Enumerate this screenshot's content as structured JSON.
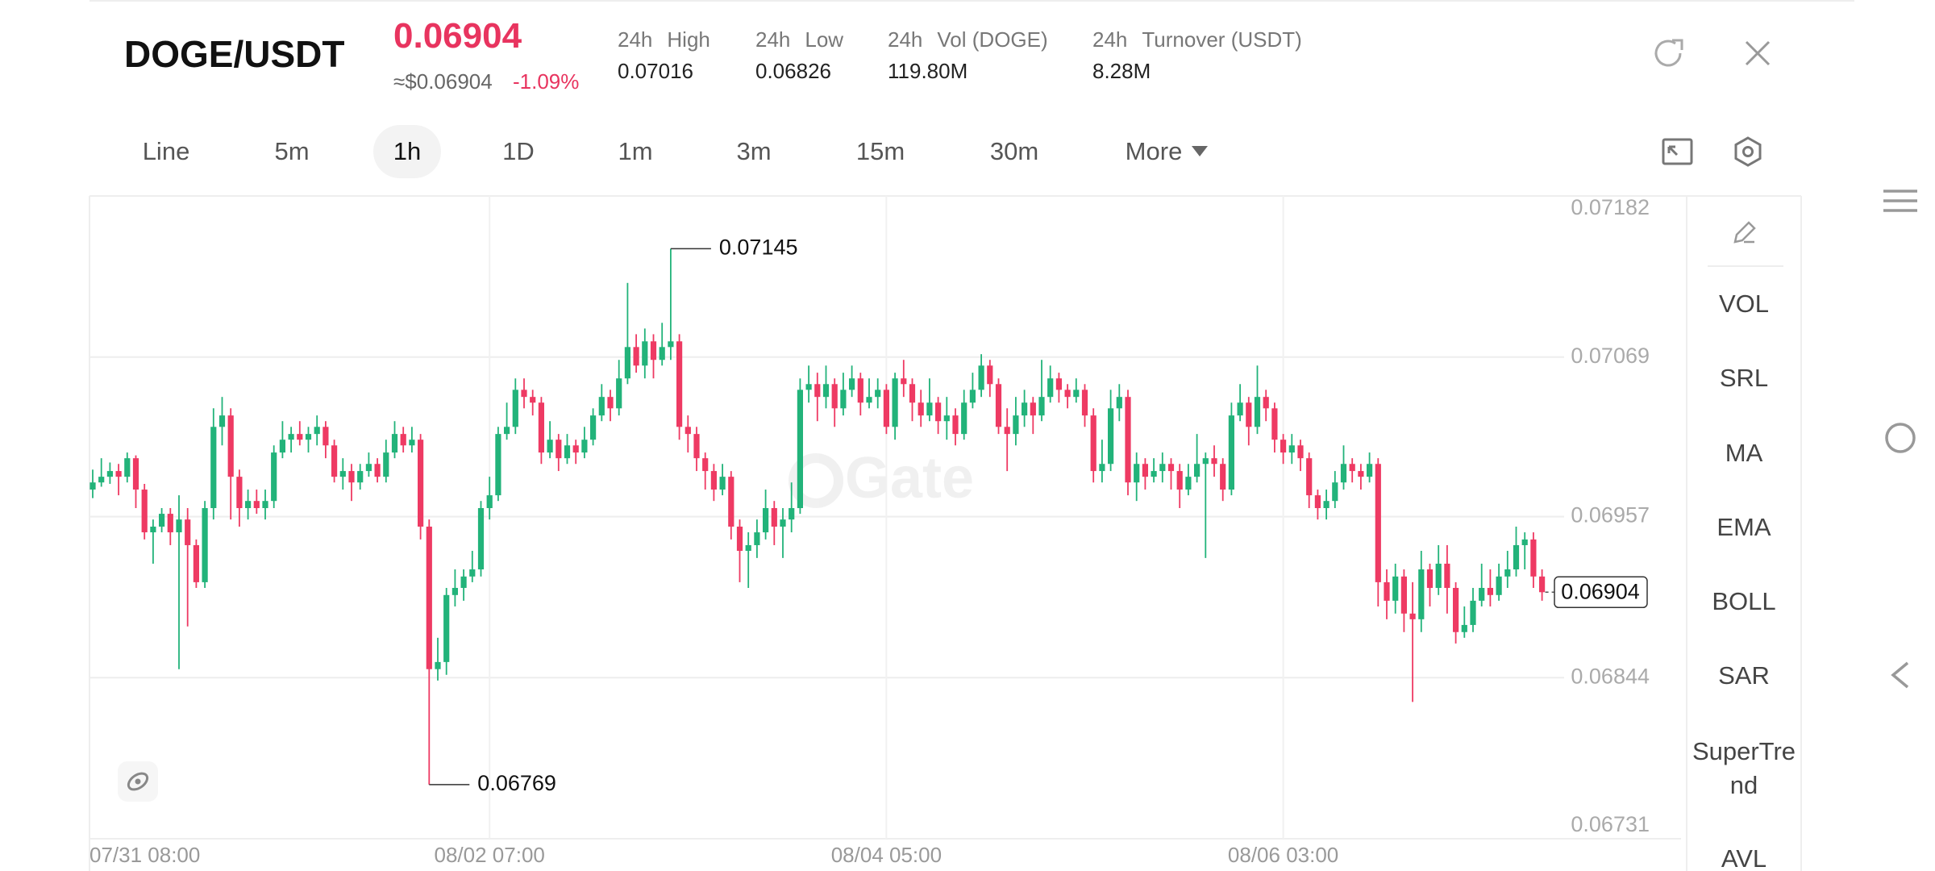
{
  "header": {
    "pair": "DOGE/USDT",
    "price": "0.06904",
    "fiat_price": "≈$0.06904",
    "change": "-1.09%",
    "stats": [
      {
        "period": "24h",
        "label": "High",
        "value": "0.07016"
      },
      {
        "period": "24h",
        "label": "Low",
        "value": "0.06826"
      },
      {
        "period": "24h",
        "label": "Vol (DOGE)",
        "value": "119.80M"
      },
      {
        "period": "24h",
        "label": "Turnover (USDT)",
        "value": "8.28M"
      }
    ]
  },
  "tabs": [
    "Line",
    "5m",
    "1h",
    "1D",
    "1m",
    "3m",
    "15m",
    "30m",
    "More"
  ],
  "indicators": [
    "VOL",
    "SRL",
    "MA",
    "EMA",
    "BOLL",
    "SAR",
    "SuperTrend",
    "AVL"
  ],
  "chart_data": {
    "type": "candlestick",
    "watermark": "Gate",
    "up_color": "#22b37a",
    "down_color": "#ee3a63",
    "grid": true,
    "ylim": [
      0.06731,
      0.07182
    ],
    "yticks": [
      0.07182,
      0.07069,
      0.06957,
      0.06844,
      0.06731
    ],
    "categories": [
      "07/31 08:00",
      null,
      null,
      null,
      null,
      null,
      null,
      null,
      null,
      null,
      null,
      null,
      null,
      null,
      null,
      null,
      null,
      null,
      null,
      null,
      null,
      null,
      null,
      null,
      null,
      null,
      null,
      null,
      null,
      null,
      null,
      null,
      null,
      null,
      null,
      null,
      null,
      null,
      null,
      null,
      null,
      null,
      null,
      null,
      null,
      null,
      "08/02 07:00",
      null,
      null,
      null,
      null,
      null,
      null,
      null,
      null,
      null,
      null,
      null,
      null,
      null,
      null,
      null,
      null,
      null,
      null,
      null,
      null,
      null,
      null,
      null,
      null,
      null,
      null,
      null,
      null,
      null,
      null,
      null,
      null,
      null,
      null,
      null,
      null,
      null,
      null,
      null,
      null,
      null,
      null,
      null,
      null,
      null,
      "08/04 05:00",
      null,
      null,
      null,
      null,
      null,
      null,
      null,
      null,
      null,
      null,
      null,
      null,
      null,
      null,
      null,
      null,
      null,
      null,
      null,
      null,
      null,
      null,
      null,
      null,
      null,
      null,
      null,
      null,
      null,
      null,
      null,
      null,
      null,
      null,
      null,
      null,
      null,
      null,
      null,
      null,
      null,
      null,
      null,
      null,
      null,
      "08/06 03:00",
      null,
      null,
      null,
      null,
      null,
      null,
      null,
      null,
      null,
      null,
      null,
      null,
      null,
      null,
      null,
      null,
      null,
      null,
      null,
      null,
      null,
      null,
      null,
      null,
      null,
      null,
      null,
      null,
      null,
      null
    ],
    "candles": [
      [
        0.06976,
        0.0699,
        0.0697,
        0.06981
      ],
      [
        0.06981,
        0.06998,
        0.06978,
        0.06985
      ],
      [
        0.06985,
        0.06995,
        0.0698,
        0.06989
      ],
      [
        0.06989,
        0.06994,
        0.06972,
        0.06985
      ],
      [
        0.06985,
        0.07002,
        0.06981,
        0.06998
      ],
      [
        0.06998,
        0.07,
        0.06963,
        0.06976
      ],
      [
        0.06976,
        0.0698,
        0.06941,
        0.06946
      ],
      [
        0.06946,
        0.06955,
        0.06924,
        0.0695
      ],
      [
        0.0695,
        0.06963,
        0.06946,
        0.06959
      ],
      [
        0.06959,
        0.06963,
        0.06937,
        0.06946
      ],
      [
        0.06946,
        0.06972,
        0.0685,
        0.06955
      ],
      [
        0.06955,
        0.06963,
        0.0688,
        0.06937
      ],
      [
        0.06937,
        0.06941,
        0.06907,
        0.06911
      ],
      [
        0.06911,
        0.06968,
        0.06907,
        0.06963
      ],
      [
        0.06963,
        0.07033,
        0.06955,
        0.0702
      ],
      [
        0.0702,
        0.07041,
        0.07007,
        0.07028
      ],
      [
        0.07028,
        0.07033,
        0.06955,
        0.06985
      ],
      [
        0.06985,
        0.0699,
        0.0695,
        0.06963
      ],
      [
        0.06963,
        0.06976,
        0.06955,
        0.06968
      ],
      [
        0.06968,
        0.06976,
        0.06959,
        0.06963
      ],
      [
        0.06963,
        0.06976,
        0.06955,
        0.06968
      ],
      [
        0.06968,
        0.07007,
        0.06963,
        0.07002
      ],
      [
        0.07002,
        0.07024,
        0.06998,
        0.07011
      ],
      [
        0.07011,
        0.0702,
        0.07002,
        0.07015
      ],
      [
        0.07015,
        0.07024,
        0.07007,
        0.07011
      ],
      [
        0.07011,
        0.0702,
        0.07002,
        0.07015
      ],
      [
        0.07015,
        0.07028,
        0.07007,
        0.0702
      ],
      [
        0.0702,
        0.07024,
        0.06998,
        0.07007
      ],
      [
        0.07007,
        0.07011,
        0.06981,
        0.06985
      ],
      [
        0.06985,
        0.06998,
        0.06976,
        0.06989
      ],
      [
        0.06989,
        0.06994,
        0.06968,
        0.06981
      ],
      [
        0.06981,
        0.06994,
        0.06976,
        0.06989
      ],
      [
        0.06989,
        0.07002,
        0.06985,
        0.06994
      ],
      [
        0.06994,
        0.06998,
        0.06981,
        0.06985
      ],
      [
        0.06985,
        0.07011,
        0.06981,
        0.07002
      ],
      [
        0.07002,
        0.07024,
        0.06998,
        0.07015
      ],
      [
        0.07015,
        0.0702,
        0.07002,
        0.07007
      ],
      [
        0.07007,
        0.0702,
        0.07002,
        0.07011
      ],
      [
        0.07011,
        0.07015,
        0.06941,
        0.0695
      ],
      [
        0.0695,
        0.06955,
        0.06769,
        0.0685
      ],
      [
        0.0685,
        0.06872,
        0.06842,
        0.06855
      ],
      [
        0.06855,
        0.06907,
        0.06846,
        0.06902
      ],
      [
        0.06902,
        0.0692,
        0.06894,
        0.06907
      ],
      [
        0.06907,
        0.0692,
        0.06898,
        0.06915
      ],
      [
        0.06915,
        0.06933,
        0.06911,
        0.0692
      ],
      [
        0.0692,
        0.06968,
        0.06915,
        0.06963
      ],
      [
        0.06963,
        0.06985,
        0.06955,
        0.06972
      ],
      [
        0.06972,
        0.0702,
        0.06968,
        0.07015
      ],
      [
        0.07015,
        0.07037,
        0.07011,
        0.0702
      ],
      [
        0.0702,
        0.07054,
        0.07015,
        0.07046
      ],
      [
        0.07046,
        0.07054,
        0.07033,
        0.07041
      ],
      [
        0.07041,
        0.07046,
        0.07028,
        0.07037
      ],
      [
        0.07037,
        0.07041,
        0.06994,
        0.07002
      ],
      [
        0.07002,
        0.07024,
        0.06998,
        0.07011
      ],
      [
        0.07011,
        0.07015,
        0.06989,
        0.06998
      ],
      [
        0.06998,
        0.07015,
        0.06994,
        0.07007
      ],
      [
        0.07007,
        0.07011,
        0.06994,
        0.07002
      ],
      [
        0.07002,
        0.0702,
        0.06998,
        0.07011
      ],
      [
        0.07011,
        0.07033,
        0.07007,
        0.07028
      ],
      [
        0.07028,
        0.0705,
        0.07024,
        0.07041
      ],
      [
        0.07041,
        0.07046,
        0.07024,
        0.07033
      ],
      [
        0.07033,
        0.07067,
        0.07028,
        0.07054
      ],
      [
        0.07054,
        0.07121,
        0.0705,
        0.07076
      ],
      [
        0.07076,
        0.07085,
        0.07058,
        0.07063
      ],
      [
        0.07063,
        0.07089,
        0.07054,
        0.0708
      ],
      [
        0.0708,
        0.07085,
        0.07054,
        0.07067
      ],
      [
        0.07067,
        0.07093,
        0.07063,
        0.07076
      ],
      [
        0.07076,
        0.07145,
        0.07067,
        0.0708
      ],
      [
        0.0708,
        0.07085,
        0.07011,
        0.0702
      ],
      [
        0.0702,
        0.07028,
        0.07002,
        0.07015
      ],
      [
        0.07015,
        0.0702,
        0.06989,
        0.06998
      ],
      [
        0.06998,
        0.07002,
        0.06976,
        0.06989
      ],
      [
        0.06989,
        0.06994,
        0.06968,
        0.06976
      ],
      [
        0.06976,
        0.06994,
        0.06972,
        0.06985
      ],
      [
        0.06985,
        0.06989,
        0.06941,
        0.0695
      ],
      [
        0.0695,
        0.06955,
        0.06911,
        0.06933
      ],
      [
        0.06933,
        0.06946,
        0.06907,
        0.06937
      ],
      [
        0.06937,
        0.06955,
        0.06928,
        0.06946
      ],
      [
        0.06946,
        0.06976,
        0.06941,
        0.06963
      ],
      [
        0.06963,
        0.06968,
        0.06937,
        0.0695
      ],
      [
        0.0695,
        0.06963,
        0.06928,
        0.06955
      ],
      [
        0.06955,
        0.06981,
        0.06946,
        0.06963
      ],
      [
        0.06963,
        0.07054,
        0.06959,
        0.07046
      ],
      [
        0.07046,
        0.07063,
        0.07037,
        0.0705
      ],
      [
        0.0705,
        0.07058,
        0.07024,
        0.07041
      ],
      [
        0.07041,
        0.07063,
        0.07033,
        0.0705
      ],
      [
        0.0705,
        0.07054,
        0.0702,
        0.07033
      ],
      [
        0.07033,
        0.07058,
        0.07028,
        0.07046
      ],
      [
        0.07046,
        0.07063,
        0.07041,
        0.07054
      ],
      [
        0.07054,
        0.07058,
        0.07028,
        0.07037
      ],
      [
        0.07037,
        0.07054,
        0.07033,
        0.07041
      ],
      [
        0.07041,
        0.07054,
        0.07033,
        0.07046
      ],
      [
        0.07046,
        0.0705,
        0.07015,
        0.0702
      ],
      [
        0.0702,
        0.07058,
        0.07011,
        0.07054
      ],
      [
        0.07054,
        0.07067,
        0.07041,
        0.0705
      ],
      [
        0.0705,
        0.07054,
        0.07024,
        0.07037
      ],
      [
        0.07037,
        0.07046,
        0.0702,
        0.07028
      ],
      [
        0.07028,
        0.07054,
        0.07024,
        0.07037
      ],
      [
        0.07037,
        0.07041,
        0.07015,
        0.07024
      ],
      [
        0.07024,
        0.07041,
        0.07011,
        0.07028
      ],
      [
        0.07028,
        0.07033,
        0.07007,
        0.07015
      ],
      [
        0.07015,
        0.07046,
        0.07011,
        0.07037
      ],
      [
        0.07037,
        0.07058,
        0.07033,
        0.07046
      ],
      [
        0.07046,
        0.07071,
        0.07041,
        0.07063
      ],
      [
        0.07063,
        0.07067,
        0.07041,
        0.0705
      ],
      [
        0.0705,
        0.07054,
        0.07015,
        0.0702
      ],
      [
        0.0702,
        0.07033,
        0.06989,
        0.07015
      ],
      [
        0.07015,
        0.07041,
        0.07007,
        0.07028
      ],
      [
        0.07028,
        0.07046,
        0.0702,
        0.07037
      ],
      [
        0.07037,
        0.07041,
        0.07015,
        0.07028
      ],
      [
        0.07028,
        0.07067,
        0.07024,
        0.07041
      ],
      [
        0.07041,
        0.07063,
        0.07037,
        0.07054
      ],
      [
        0.07054,
        0.07058,
        0.07037,
        0.07046
      ],
      [
        0.07046,
        0.0705,
        0.07033,
        0.07041
      ],
      [
        0.07041,
        0.07054,
        0.07037,
        0.07046
      ],
      [
        0.07046,
        0.0705,
        0.0702,
        0.07028
      ],
      [
        0.07028,
        0.07033,
        0.06981,
        0.06989
      ],
      [
        0.06989,
        0.07011,
        0.06981,
        0.06994
      ],
      [
        0.06994,
        0.07046,
        0.06989,
        0.07033
      ],
      [
        0.07033,
        0.0705,
        0.07024,
        0.07041
      ],
      [
        0.07041,
        0.07046,
        0.06972,
        0.06981
      ],
      [
        0.06981,
        0.07002,
        0.06968,
        0.06994
      ],
      [
        0.06994,
        0.06998,
        0.06976,
        0.06985
      ],
      [
        0.06985,
        0.06998,
        0.06981,
        0.06989
      ],
      [
        0.06989,
        0.07002,
        0.06981,
        0.06994
      ],
      [
        0.06994,
        0.06998,
        0.06976,
        0.06989
      ],
      [
        0.06989,
        0.06994,
        0.06963,
        0.06976
      ],
      [
        0.06976,
        0.06994,
        0.06972,
        0.06985
      ],
      [
        0.06985,
        0.07015,
        0.06981,
        0.06994
      ],
      [
        0.06994,
        0.07002,
        0.06928,
        0.06998
      ],
      [
        0.06998,
        0.07007,
        0.06985,
        0.06994
      ],
      [
        0.06994,
        0.06998,
        0.06968,
        0.06976
      ],
      [
        0.06976,
        0.07037,
        0.06972,
        0.07028
      ],
      [
        0.07028,
        0.0705,
        0.07024,
        0.07037
      ],
      [
        0.07037,
        0.07041,
        0.07007,
        0.0702
      ],
      [
        0.0702,
        0.07063,
        0.07015,
        0.07041
      ],
      [
        0.07041,
        0.07046,
        0.07024,
        0.07033
      ],
      [
        0.07033,
        0.07037,
        0.07002,
        0.07011
      ],
      [
        0.07011,
        0.07015,
        0.06994,
        0.07002
      ],
      [
        0.07002,
        0.07015,
        0.06994,
        0.07007
      ],
      [
        0.07007,
        0.07011,
        0.06989,
        0.06998
      ],
      [
        0.06998,
        0.07002,
        0.06963,
        0.06972
      ],
      [
        0.06972,
        0.06976,
        0.06955,
        0.06963
      ],
      [
        0.06963,
        0.06976,
        0.06955,
        0.06968
      ],
      [
        0.06968,
        0.06989,
        0.06963,
        0.06981
      ],
      [
        0.06981,
        0.07007,
        0.06976,
        0.06994
      ],
      [
        0.06994,
        0.06998,
        0.06981,
        0.06989
      ],
      [
        0.06989,
        0.06994,
        0.06976,
        0.06985
      ],
      [
        0.06985,
        0.07002,
        0.06981,
        0.06994
      ],
      [
        0.06994,
        0.06998,
        0.06894,
        0.06911
      ],
      [
        0.06911,
        0.0692,
        0.06885,
        0.06898
      ],
      [
        0.06898,
        0.06924,
        0.06889,
        0.06915
      ],
      [
        0.06915,
        0.0692,
        0.06876,
        0.06889
      ],
      [
        0.06889,
        0.06911,
        0.06827,
        0.06885
      ],
      [
        0.06885,
        0.06933,
        0.06876,
        0.0692
      ],
      [
        0.0692,
        0.06924,
        0.06894,
        0.06907
      ],
      [
        0.06907,
        0.06937,
        0.06902,
        0.06924
      ],
      [
        0.06924,
        0.06937,
        0.06889,
        0.06907
      ],
      [
        0.06907,
        0.06911,
        0.06868,
        0.06876
      ],
      [
        0.06876,
        0.06894,
        0.06872,
        0.06881
      ],
      [
        0.06881,
        0.06907,
        0.06876,
        0.06898
      ],
      [
        0.06898,
        0.06924,
        0.06894,
        0.06907
      ],
      [
        0.06907,
        0.0692,
        0.06894,
        0.06902
      ],
      [
        0.06902,
        0.06924,
        0.06898,
        0.06915
      ],
      [
        0.06915,
        0.06933,
        0.06907,
        0.0692
      ],
      [
        0.0692,
        0.0695,
        0.06915,
        0.06937
      ],
      [
        0.06937,
        0.06946,
        0.0692,
        0.06941
      ],
      [
        0.06941,
        0.06946,
        0.06907,
        0.06915
      ],
      [
        0.06915,
        0.0692,
        0.06898,
        0.06904
      ]
    ]
  }
}
